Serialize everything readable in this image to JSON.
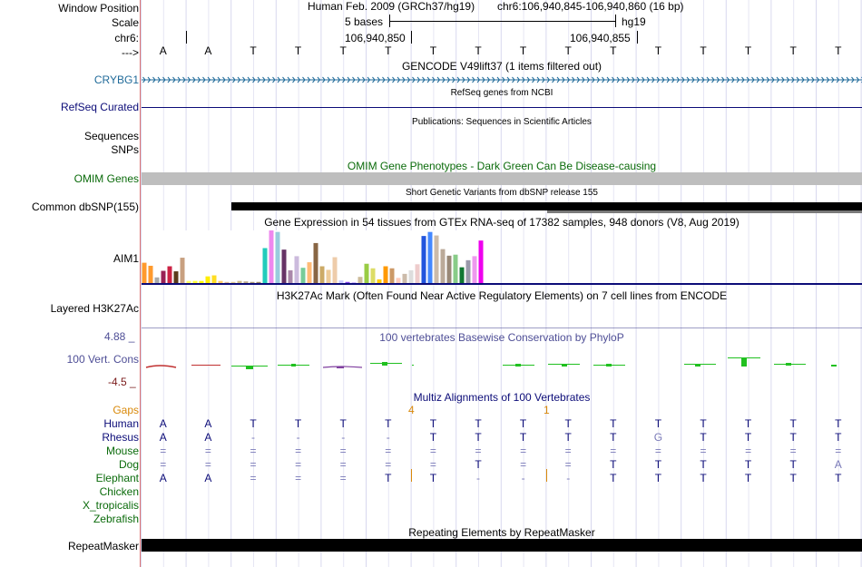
{
  "colors": {
    "gencode": "#1f6a99",
    "refseq": "#0c0c78",
    "omim": "#0b6b0b",
    "phylop_label": "#4e4e96",
    "neg_label": "#7a1a1a",
    "gaps": "#d9890a",
    "multiz": "#0c0c78",
    "species_primate": "#0c0c78",
    "species_other": "#0b6b0b"
  },
  "header": {
    "window_position_label": "Window Position",
    "scale_label": "Scale",
    "chrom_label": "chr6:",
    "arrow_label": "--->",
    "assembly": "Human Feb. 2009 (GRCh37/hg19)",
    "position": "chr6:106,940,845-106,940,860 (16 bp)",
    "scale_text": "5 bases",
    "db": "hg19",
    "coord_a": "106,940,850",
    "coord_b": "106,940,855"
  },
  "sequence": [
    "A",
    "A",
    "T",
    "T",
    "T",
    "T",
    "T",
    "T",
    "T",
    "T",
    "T",
    "T",
    "T",
    "T",
    "T",
    "T"
  ],
  "tracks": {
    "gencode_title": "GENCODE V49lift37 (1 items filtered out)",
    "crybg1_label": "CRYBG1",
    "refseq_title": "RefSeq genes from NCBI",
    "refseq_label": "RefSeq Curated",
    "publications_title": "Publications: Sequences in Scientific Articles",
    "sequences_label": "Sequences",
    "snps_label": "SNPs",
    "omim_title": "OMIM Gene Phenotypes - Dark Green Can Be Disease-causing",
    "omim_label": "OMIM Genes",
    "dbsnp_title": "Short Genetic Variants from dbSNP release 155",
    "dbsnp_label": "Common dbSNP(155)",
    "gtex_title": "Gene Expression in 54 tissues from GTEx RNA-seq of 17382 samples, 948 donors (V8, Aug 2019)",
    "gtex_label": "AIM1",
    "h3k27ac_title": "H3K27Ac Mark (Often Found Near Active Regulatory Elements) on 7 cell lines from ENCODE",
    "h3k27ac_label": "Layered H3K27Ac",
    "phylop_title": "100 vertebrates Basewise Conservation by PhyloP",
    "phylop_label": "100 Vert. Cons",
    "phylop_max": "4.88 _",
    "phylop_min": "-4.5 _",
    "multiz_title": "Multiz Alignments of 100 Vertebrates",
    "gaps_label": "Gaps",
    "gap_count_a": "4",
    "gap_count_b": "1",
    "repeat_title": "Repeating Elements by RepeatMasker",
    "repeat_label": "RepeatMasker"
  },
  "alignment": [
    {
      "name": "Human",
      "bases": [
        "A",
        "A",
        "T",
        "T",
        "T",
        "T",
        "T",
        "T",
        "T",
        "T",
        "T",
        "T",
        "T",
        "T",
        "T",
        "T"
      ]
    },
    {
      "name": "Rhesus",
      "bases": [
        "A",
        "A",
        "-",
        "-",
        "-",
        "-",
        "T",
        "T",
        "T",
        "T",
        "T",
        "G",
        "T",
        "T",
        "T",
        "T"
      ]
    },
    {
      "name": "Mouse",
      "bases": [
        "=",
        "=",
        "=",
        "=",
        "=",
        "=",
        "=",
        "=",
        "=",
        "=",
        "=",
        "=",
        "=",
        "=",
        "=",
        "="
      ]
    },
    {
      "name": "Dog",
      "bases": [
        "=",
        "=",
        "=",
        "=",
        "=",
        "=",
        "=",
        "T",
        "=",
        "=",
        "T",
        "T",
        "T",
        "T",
        "T",
        "A"
      ]
    },
    {
      "name": "Elephant",
      "bases": [
        "A",
        "A",
        "=",
        "=",
        "=",
        "T",
        "T",
        "-",
        "-",
        "-",
        "T",
        "T",
        "T",
        "T",
        "T",
        "T"
      ]
    },
    {
      "name": "Chicken",
      "bases": []
    },
    {
      "name": "X_tropicalis",
      "bases": []
    },
    {
      "name": "Zebrafish",
      "bases": []
    }
  ],
  "gtex_values": [
    4.2,
    3.6,
    1.3,
    2.6,
    3.5,
    2.5,
    5.2,
    0.6,
    0.6,
    0.6,
    1.5,
    1.7,
    0.6,
    0.4,
    0.4,
    0.6,
    0.5,
    0.4,
    0.4,
    7.1,
    10.6,
    10.3,
    6.8,
    2.7,
    5.5,
    3.2,
    4.3,
    8.1,
    3.5,
    2.8,
    5.3,
    0.7,
    0.4,
    0.3,
    1.4,
    4.0,
    3.1,
    0.9,
    3.5,
    3.1,
    1.2,
    2.0,
    2.7,
    3.9,
    9.5,
    10.3,
    9.6,
    6.9,
    5.6,
    5.8,
    3.3,
    4.7,
    5.5,
    8.6
  ],
  "gtex_colors": [
    "#ff9a2d",
    "#ff9a2d",
    "#aaaaaa",
    "#992255",
    "#cc2244",
    "#5a3a1a",
    "#c8a080",
    "#ffff66",
    "#ffff33",
    "#ffff00",
    "#ffee00",
    "#ffdd22",
    "#ffcc66",
    "#ddbb99",
    "#dec890",
    "#ccbb88",
    "#bbaa88",
    "#aa9977",
    "#998866",
    "#22ccbb",
    "#ee88ee",
    "#99ccdd",
    "#663366",
    "#aa88aa",
    "#ccbbdd",
    "#77cc99",
    "#ffbb77",
    "#886644",
    "#ccaa66",
    "#eecc99",
    "#eeccaa",
    "#ccccff",
    "#8844ee",
    "#bb99ff",
    "#ccbb99",
    "#99cc44",
    "#dddd66",
    "#ffcc00",
    "#ff9900",
    "#cc9966",
    "#ffccbb",
    "#ccbbaa",
    "#dddddd",
    "#eecccc",
    "#2255dd",
    "#4488ff",
    "#ccbbaa",
    "#bbaa99",
    "#998877",
    "#88cc88",
    "#117733",
    "#9999aa",
    "#ee99ee",
    "#ee00ee"
  ]
}
